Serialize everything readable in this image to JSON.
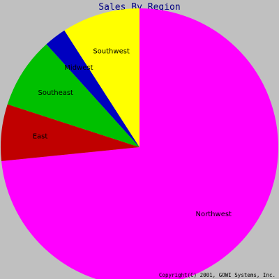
{
  "chart_data": {
    "type": "pie",
    "title": "Sales By Region",
    "slices": [
      {
        "label": "Northwest",
        "value": 73.4,
        "color": "#ff00ff"
      },
      {
        "label": "East",
        "value": 6.6,
        "color": "#c00000"
      },
      {
        "label": "Southeast",
        "value": 8.3,
        "color": "#00c000"
      },
      {
        "label": "Midwest",
        "value": 2.6,
        "color": "#0000c0"
      },
      {
        "label": "Southwest",
        "value": 9.1,
        "color": "#ffff00"
      }
    ],
    "start_angle_deg": 270,
    "direction": "clockwise",
    "legend": "none",
    "colors": {
      "background": "#c0c0c0",
      "title": "#000080"
    }
  },
  "footer": {
    "copyright": "Copyright(C) 2001, GOWI Systems, Inc."
  }
}
